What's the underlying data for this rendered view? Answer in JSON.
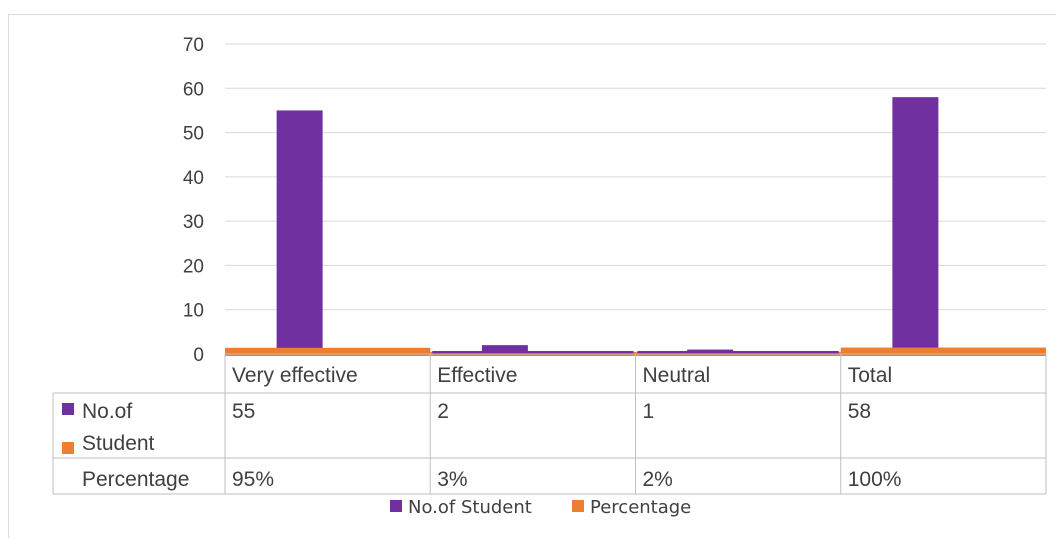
{
  "chart_data": {
    "type": "bar",
    "categories": [
      "Very effective",
      "Effective",
      "Neutral",
      "Total"
    ],
    "series": [
      {
        "name": "No.of Student",
        "table_label": [
          "No.of",
          "Student"
        ],
        "color": "#7030a0",
        "values": [
          55,
          2,
          1,
          58
        ],
        "display": [
          "55",
          "2",
          "1",
          "58"
        ]
      },
      {
        "name": "Percentage",
        "table_label": [
          "Percentage"
        ],
        "color": "#ed7d31",
        "values": [
          0.95,
          0.03,
          0.02,
          1.0
        ],
        "display": [
          "95%",
          "3%",
          "2%",
          "100%"
        ]
      }
    ],
    "y_ticks": [
      "0",
      "10",
      "20",
      "30",
      "40",
      "50",
      "60",
      "70"
    ],
    "ylim": [
      0,
      70
    ],
    "grid": true,
    "legend": "bottom",
    "data_table": true
  }
}
